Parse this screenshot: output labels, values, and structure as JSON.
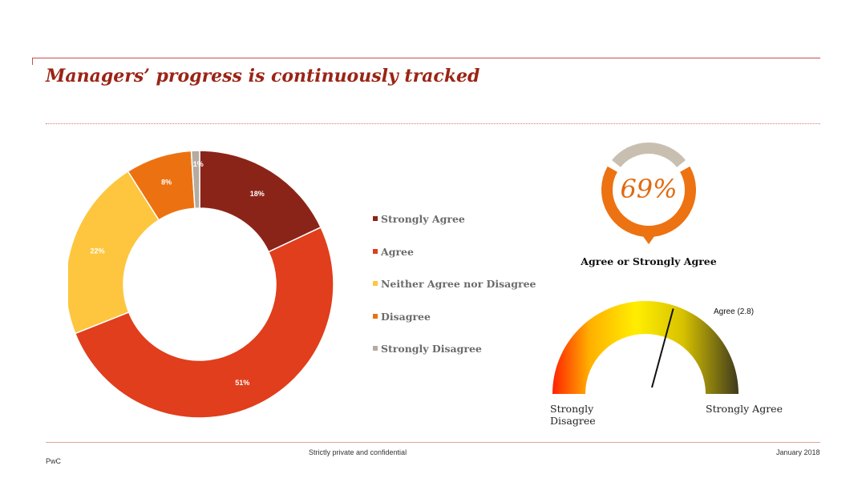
{
  "header": {
    "title": "Managers’ progress is continuously tracked"
  },
  "chart_data": [
    {
      "type": "donut",
      "categories": [
        "Strongly Agree",
        "Agree",
        "Neither Agree nor Disagree",
        "Disagree",
        "Strongly Disagree"
      ],
      "values": [
        18,
        51,
        22,
        8,
        1
      ],
      "labels": [
        "18%",
        "51%",
        "22%",
        "8%",
        "1%"
      ],
      "colors": [
        "#8b2418",
        "#e03e1c",
        "#fdc63e",
        "#ec7211",
        "#b5aca0"
      ],
      "legend_position": "right"
    },
    {
      "type": "kpi-ring",
      "value": 69,
      "value_label": "69%",
      "caption": "Agree or Strongly Agree",
      "colors": {
        "fill": "#ed7211",
        "track": "#c9bfb1",
        "text": "#e06a10"
      }
    },
    {
      "type": "gauge",
      "value": 2.8,
      "marker_label": "Agree (2.8)",
      "min_label": "Strongly Disagree",
      "max_label": "Strongly Agree"
    }
  ],
  "footer": {
    "confidential": "Strictly private and confidential",
    "date": "January 2018",
    "brand": "PwC"
  }
}
